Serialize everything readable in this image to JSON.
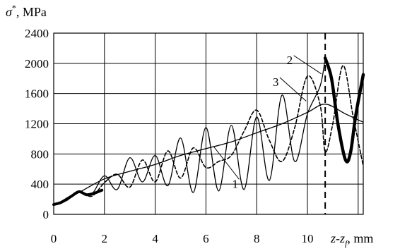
{
  "chart_data": {
    "type": "line",
    "ylabel_symbol": "σ",
    "ylabel_sup": "*",
    "ylabel_unit": ", MPa",
    "xlabel": "z-z",
    "xlabel_sub": "f",
    "xlabel_unit": ", mm",
    "xlim": [
      0,
      12.2
    ],
    "ylim": [
      0,
      2400
    ],
    "x_ticks": [
      0,
      2,
      4,
      6,
      8,
      10
    ],
    "y_ticks": [
      0,
      400,
      800,
      1200,
      1600,
      2000,
      2400
    ],
    "grid": true,
    "vline_x": 10.7,
    "series": [
      {
        "name": "1",
        "style": "thin-solid",
        "x": [
          0,
          1,
          2,
          3,
          4,
          5,
          6,
          7,
          8,
          9,
          10,
          10.7,
          11.5,
          12.2
        ],
        "y": [
          120,
          290,
          470,
          570,
          660,
          780,
          870,
          960,
          1080,
          1200,
          1350,
          1460,
          1330,
          1220
        ]
      },
      {
        "name": "2",
        "style": "thin-solid",
        "x": [
          0,
          0.5,
          1.0,
          1.5,
          2.0,
          2.5,
          3.0,
          3.5,
          4.0,
          4.5,
          5.0,
          5.5,
          6.0,
          6.5,
          7.0,
          7.5,
          8.0,
          8.5,
          9.0,
          9.5,
          10.0,
          10.5,
          10.7
        ],
        "y": [
          130,
          180,
          300,
          270,
          510,
          330,
          750,
          430,
          780,
          380,
          1010,
          290,
          1150,
          310,
          1180,
          330,
          1290,
          450,
          1580,
          700,
          1330,
          1700,
          2070
        ]
      },
      {
        "name": "3",
        "style": "dashed",
        "x": [
          0,
          0.5,
          1.0,
          1.5,
          2.0,
          2.5,
          3.0,
          3.5,
          4.0,
          4.5,
          5.0,
          5.5,
          6.0,
          6.5,
          7.0,
          7.5,
          8.0,
          8.5,
          9.0,
          9.5,
          10.0,
          10.5,
          10.7,
          11.0,
          11.4,
          11.8,
          12.2
        ],
        "y": [
          120,
          200,
          300,
          240,
          420,
          530,
          360,
          720,
          430,
          840,
          480,
          880,
          620,
          700,
          780,
          1100,
          1380,
          980,
          700,
          1150,
          1830,
          1450,
          830,
          1200,
          1970,
          1300,
          640
        ]
      },
      {
        "name": "",
        "style": "thick-segment-1",
        "x": [
          0,
          0.3,
          0.7,
          1.0,
          1.3,
          1.6,
          1.9
        ],
        "y": [
          130,
          160,
          240,
          300,
          260,
          280,
          320
        ]
      },
      {
        "name": "",
        "style": "thick-segment-2",
        "x": [
          10.7,
          10.95,
          11.2,
          11.5,
          11.7,
          11.9,
          12.2
        ],
        "y": [
          2070,
          1800,
          1200,
          720,
          820,
          1300,
          1850
        ]
      }
    ],
    "callouts": [
      {
        "label": "1",
        "x": 7.2,
        "y": 370,
        "to_x": 6.3,
        "to_y": 900
      },
      {
        "label": "2",
        "x": 9.35,
        "y": 2010,
        "to_x": 10.55,
        "to_y": 1860
      },
      {
        "label": "3",
        "x": 8.8,
        "y": 1720,
        "to_x": 9.95,
        "to_y": 1500
      }
    ]
  }
}
